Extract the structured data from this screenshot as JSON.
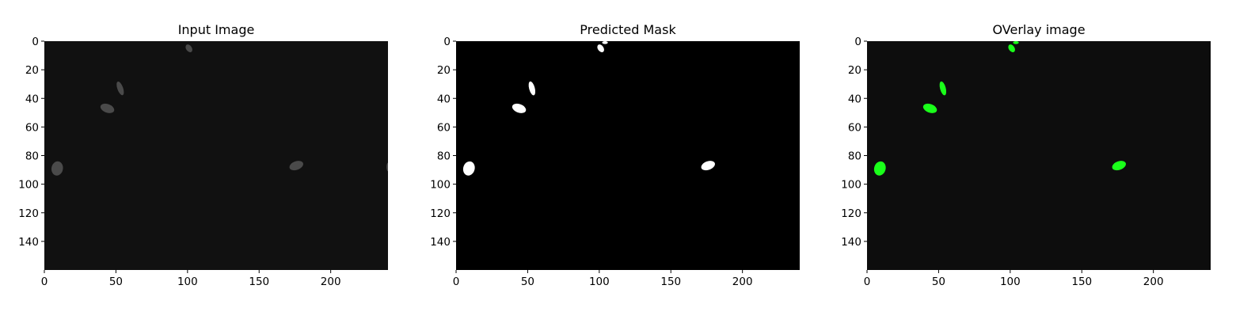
{
  "chart_data": [
    {
      "type": "image",
      "title": "Input Image",
      "xlim": [
        0,
        240
      ],
      "ylim": [
        160,
        0
      ],
      "x_ticks": [
        0,
        50,
        100,
        150,
        200
      ],
      "y_ticks": [
        0,
        20,
        40,
        60,
        80,
        100,
        120,
        140
      ],
      "background": "#111111",
      "blob_color": "#4a4a4a",
      "blobs": [
        {
          "x": 101,
          "y": 5,
          "rx": 2,
          "ry": 3,
          "angle": -35
        },
        {
          "x": 53,
          "y": 33,
          "rx": 2,
          "ry": 5,
          "angle": -20
        },
        {
          "x": 44,
          "y": 47,
          "rx": 5,
          "ry": 3,
          "angle": 20
        },
        {
          "x": 9,
          "y": 89,
          "rx": 4,
          "ry": 5,
          "angle": 10
        },
        {
          "x": 176,
          "y": 87,
          "rx": 5,
          "ry": 3,
          "angle": -20
        },
        {
          "x": 240,
          "y": 88,
          "rx": 1,
          "ry": 3,
          "angle": 0
        }
      ]
    },
    {
      "type": "image",
      "title": "Predicted Mask",
      "xlim": [
        0,
        240
      ],
      "ylim": [
        160,
        0
      ],
      "x_ticks": [
        0,
        50,
        100,
        150,
        200
      ],
      "y_ticks": [
        0,
        20,
        40,
        60,
        80,
        100,
        120,
        140
      ],
      "background": "#000000",
      "blob_color": "#ffffff",
      "blobs": [
        {
          "x": 101,
          "y": 5,
          "rx": 2,
          "ry": 3,
          "angle": -35
        },
        {
          "x": 104,
          "y": 1,
          "rx": 2,
          "ry": 1,
          "angle": 0
        },
        {
          "x": 53,
          "y": 33,
          "rx": 2,
          "ry": 5,
          "angle": -15
        },
        {
          "x": 44,
          "y": 47,
          "rx": 5,
          "ry": 3,
          "angle": 20
        },
        {
          "x": 9,
          "y": 89,
          "rx": 4,
          "ry": 5,
          "angle": 15
        },
        {
          "x": 176,
          "y": 87,
          "rx": 5,
          "ry": 3,
          "angle": -20
        }
      ]
    },
    {
      "type": "image",
      "title": "OVerlay image",
      "xlim": [
        0,
        240
      ],
      "ylim": [
        160,
        0
      ],
      "x_ticks": [
        0,
        50,
        100,
        150,
        200
      ],
      "y_ticks": [
        0,
        20,
        40,
        60,
        80,
        100,
        120,
        140
      ],
      "background": "#0d0d0d",
      "blob_color": "#1aff1a",
      "blobs": [
        {
          "x": 101,
          "y": 5,
          "rx": 2,
          "ry": 3,
          "angle": -35
        },
        {
          "x": 104,
          "y": 1,
          "rx": 2,
          "ry": 1,
          "angle": 0
        },
        {
          "x": 53,
          "y": 33,
          "rx": 2,
          "ry": 5,
          "angle": -15
        },
        {
          "x": 44,
          "y": 47,
          "rx": 5,
          "ry": 3,
          "angle": 20
        },
        {
          "x": 9,
          "y": 89,
          "rx": 4,
          "ry": 5,
          "angle": 15
        },
        {
          "x": 176,
          "y": 87,
          "rx": 5,
          "ry": 3,
          "angle": -20
        }
      ]
    }
  ]
}
